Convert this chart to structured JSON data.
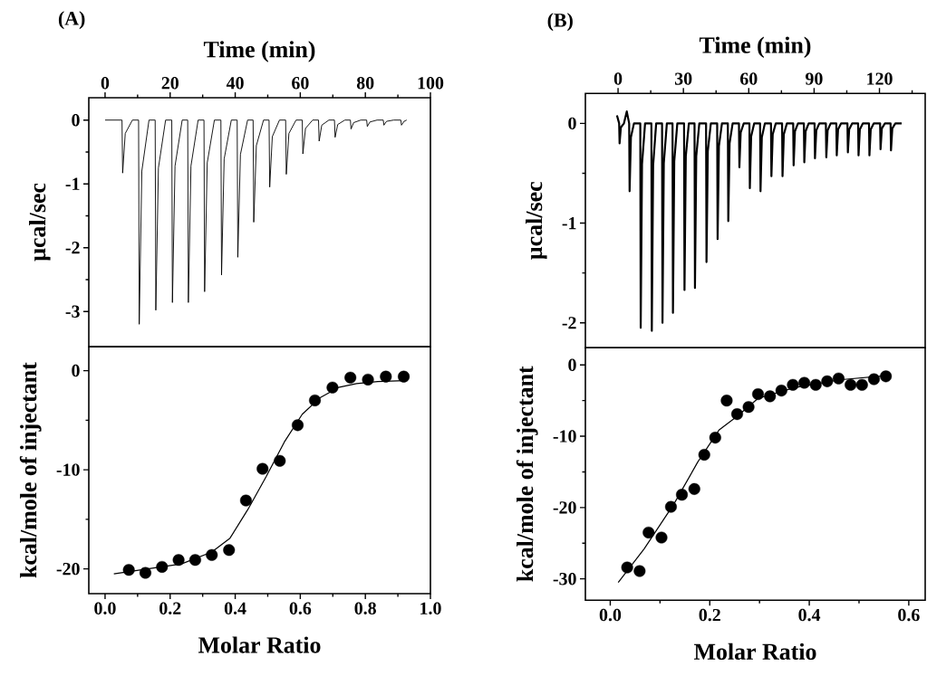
{
  "chart_data": [
    {
      "type": "line",
      "title": "(A)",
      "xlabel": "Time (min)",
      "ylabel": "µcal/sec",
      "color": "#000000",
      "x": [
        0,
        5.2,
        5.4,
        6.2,
        8.4,
        10.3,
        10.5,
        11.3,
        13.5,
        15.4,
        15.6,
        16.4,
        18.6,
        20.5,
        20.7,
        21.5,
        23.7,
        25.4,
        25.6,
        26.4,
        28.6,
        30.4,
        30.6,
        31.4,
        33.6,
        35.6,
        35.8,
        36.6,
        38.8,
        40.6,
        40.8,
        41.6,
        43.8,
        45.5,
        45.7,
        46.5,
        48.7,
        50.4,
        50.6,
        51.4,
        53.6,
        55.5,
        55.7,
        56.5,
        58.7,
        60.6,
        60.8,
        61.6,
        63.8,
        65.6,
        65.8,
        66.6,
        68.8,
        70.5,
        70.7,
        71.5,
        73.7,
        75.4,
        75.6,
        76.4,
        78.6,
        80.4,
        80.6,
        81.4,
        83.6,
        85.5,
        85.7,
        86.5,
        88.7,
        90.9,
        91.1,
        91.9,
        92.7
      ],
      "values": [
        0,
        0,
        -0.83,
        -0.21,
        0,
        0,
        -3.2,
        -0.8,
        0,
        0,
        -2.98,
        -0.75,
        0,
        0,
        -2.86,
        -0.72,
        0,
        0,
        -2.86,
        -0.72,
        0,
        0,
        -2.69,
        -0.67,
        0,
        0,
        -2.43,
        -0.61,
        0,
        0,
        -2.15,
        -0.54,
        0,
        0,
        -1.6,
        -0.4,
        0,
        0,
        -1.05,
        -0.26,
        0,
        0,
        -0.85,
        -0.21,
        0,
        0,
        -0.53,
        -0.13,
        0,
        0,
        -0.33,
        -0.08,
        0,
        0,
        -0.27,
        -0.07,
        0,
        0,
        -0.14,
        -0.04,
        0,
        0,
        -0.1,
        -0.03,
        0,
        0,
        -0.08,
        -0.02,
        0,
        0,
        -0.08,
        -0.02,
        0
      ],
      "xlim": [
        -5,
        100
      ],
      "ylim": [
        -3.55,
        0.35
      ],
      "xticks": [
        0,
        {
          "value": 10,
          "label": null
        },
        20,
        {
          "value": 30,
          "label": null
        },
        40,
        {
          "value": 50,
          "label": null
        },
        60,
        {
          "value": 70,
          "label": null
        },
        80,
        {
          "value": 90,
          "label": null
        },
        100
      ],
      "yticks": [
        -3,
        {
          "value": -2.5,
          "label": null
        },
        -2,
        {
          "value": -1.5,
          "label": null
        },
        -1,
        {
          "value": -0.5,
          "label": null
        },
        0
      ]
    },
    {
      "type": "scatter",
      "xlabel": "Molar Ratio",
      "ylabel": "kcal/mole of injectant",
      "series": [
        {
          "type": "scatter",
          "marker": "circle",
          "color": "#000000",
          "x": [
            0.073,
            0.124,
            0.175,
            0.226,
            0.277,
            0.328,
            0.381,
            0.433,
            0.484,
            0.537,
            0.592,
            0.645,
            0.699,
            0.754,
            0.808,
            0.863,
            0.918
          ],
          "values": [
            -20.1,
            -20.4,
            -19.8,
            -19.1,
            -19.1,
            -18.6,
            -18.1,
            -13.1,
            -9.9,
            -9.1,
            -5.5,
            -3.0,
            -1.7,
            -0.7,
            -0.9,
            -0.6,
            -0.6
          ]
        },
        {
          "type": "line",
          "color": "#000000",
          "x": [
            0.027,
            0.235,
            0.328,
            0.384,
            0.439,
            0.495,
            0.551,
            0.606,
            0.662,
            0.717,
            0.773,
            0.838,
            0.918
          ],
          "values": [
            -20.5,
            -19.5,
            -18.3,
            -16.9,
            -14.0,
            -10.7,
            -7.2,
            -4.4,
            -2.7,
            -1.7,
            -1.3,
            -1.1,
            -1.0
          ]
        }
      ],
      "xlim": [
        -0.05,
        1.0
      ],
      "ylim": [
        -22.5,
        2.4
      ],
      "xticks": [
        {
          "value": 0,
          "label": "0.0"
        },
        {
          "value": 0.1,
          "label": null
        },
        {
          "value": 0.2,
          "label": "0.2"
        },
        {
          "value": 0.3,
          "label": null
        },
        {
          "value": 0.4,
          "label": "0.4"
        },
        {
          "value": 0.5,
          "label": null
        },
        {
          "value": 0.6,
          "label": "0.6"
        },
        {
          "value": 0.7,
          "label": null
        },
        {
          "value": 0.8,
          "label": "0.8"
        },
        {
          "value": 0.9,
          "label": null
        },
        {
          "value": 1.0,
          "label": "1.0"
        }
      ],
      "yticks": [
        -20,
        {
          "value": -15,
          "label": null
        },
        -10,
        {
          "value": -5,
          "label": null
        },
        0
      ]
    },
    {
      "type": "line",
      "title": "(B)",
      "xlabel": "Time (min)",
      "ylabel": "µcal/sec",
      "color": "#000000",
      "x": [
        -0.5,
        0.5,
        0.7,
        1.3,
        2.7,
        4,
        5.1,
        5.3,
        5.9,
        7.3,
        10.2,
        10.4,
        11,
        12.4,
        15.3,
        15.5,
        16.1,
        17.5,
        20.2,
        20.4,
        21,
        22.4,
        25,
        25.2,
        25.8,
        27.2,
        30.3,
        30.5,
        31.1,
        32.5,
        35.1,
        35.3,
        35.9,
        37.3,
        40.4,
        40.6,
        41.2,
        42.6,
        45.5,
        45.7,
        46.3,
        47.7,
        50.4,
        50.6,
        51.2,
        52.6,
        55.5,
        55.7,
        56.3,
        57.7,
        60.3,
        60.5,
        61.1,
        62.5,
        65.2,
        65.4,
        66,
        67.4,
        70.2,
        70.4,
        71,
        72.4,
        75.3,
        75.5,
        76.1,
        77.5,
        80.4,
        80.6,
        81.2,
        82.6,
        85.3,
        85.5,
        86.1,
        87.5,
        90.2,
        90.4,
        91,
        92.4,
        95.4,
        95.6,
        96.2,
        97.6,
        100.2,
        100.4,
        101,
        102.4,
        105.3,
        105.5,
        106.1,
        107.5,
        110.2,
        110.4,
        111,
        112.4,
        115.2,
        115.4,
        116,
        117.4,
        120.3,
        120.5,
        121.1,
        122.5,
        125.1,
        125.3,
        125.9,
        127.3,
        130.2
      ],
      "values": [
        0.08,
        0,
        -0.2,
        -0.04,
        0,
        0.12,
        0,
        -0.68,
        -0.14,
        0,
        0,
        -2.05,
        -0.41,
        0,
        0,
        -2.08,
        -0.42,
        0,
        0,
        -2.0,
        -0.4,
        0,
        0,
        -1.9,
        -0.38,
        0,
        0,
        -1.67,
        -0.33,
        0,
        0,
        -1.65,
        -0.33,
        0,
        0,
        -1.39,
        -0.28,
        0,
        0,
        -1.16,
        -0.23,
        0,
        0,
        -0.98,
        -0.2,
        0,
        0,
        -0.44,
        -0.09,
        0,
        0,
        -0.65,
        -0.13,
        0,
        0,
        -0.68,
        -0.14,
        0,
        0,
        -0.53,
        -0.11,
        0,
        0,
        -0.53,
        -0.11,
        0,
        0,
        -0.42,
        -0.08,
        0,
        0,
        -0.39,
        -0.08,
        0,
        0,
        -0.35,
        -0.07,
        0,
        0,
        -0.34,
        -0.07,
        0,
        0,
        -0.32,
        -0.06,
        0,
        0,
        -0.29,
        -0.06,
        0,
        0,
        -0.32,
        -0.06,
        0,
        0,
        -0.32,
        -0.06,
        0,
        0,
        -0.26,
        -0.05,
        0,
        0,
        -0.27,
        -0.05,
        0,
        0
      ],
      "xlim": [
        -15,
        141
      ],
      "ylim": [
        -2.25,
        0.3
      ],
      "xticks": [
        0,
        {
          "value": 15,
          "label": null
        },
        30,
        {
          "value": 45,
          "label": null
        },
        60,
        {
          "value": 75,
          "label": null
        },
        90,
        {
          "value": 105,
          "label": null
        },
        120,
        {
          "value": 135,
          "label": null
        }
      ],
      "yticks": [
        -2,
        {
          "value": -1.5,
          "label": null
        },
        -1,
        {
          "value": -0.5,
          "label": null
        },
        0
      ]
    },
    {
      "type": "scatter",
      "xlabel": "Molar Ratio",
      "ylabel": "kcal/mole of injectant",
      "series": [
        {
          "type": "scatter",
          "marker": "circle",
          "color": "#000000",
          "x": [
            0.034,
            0.059,
            0.077,
            0.103,
            0.122,
            0.144,
            0.169,
            0.189,
            0.211,
            0.234,
            0.255,
            0.278,
            0.297,
            0.321,
            0.344,
            0.367,
            0.39,
            0.413,
            0.436,
            0.459,
            0.483,
            0.506,
            0.53,
            0.554
          ],
          "values": [
            -28.4,
            -28.9,
            -23.5,
            -24.2,
            -19.9,
            -18.2,
            -17.4,
            -12.6,
            -10.2,
            -5.0,
            -6.9,
            -5.9,
            -4.1,
            -4.4,
            -3.6,
            -2.8,
            -2.5,
            -2.8,
            -2.3,
            -1.9,
            -2.8,
            -2.8,
            -2.0,
            -1.6
          ]
        },
        {
          "type": "line",
          "color": "#000000",
          "x": [
            0.016,
            0.068,
            0.128,
            0.176,
            0.219,
            0.255,
            0.297,
            0.37,
            0.46,
            0.554
          ],
          "values": [
            -30.5,
            -25.8,
            -19.5,
            -13.6,
            -9.1,
            -7.2,
            -4.7,
            -3.2,
            -2.1,
            -1.5
          ]
        }
      ],
      "xlim": [
        -0.05,
        0.633
      ],
      "ylim": [
        -33,
        2.4
      ],
      "xticks": [
        {
          "value": 0,
          "label": "0.0"
        },
        {
          "value": 0.1,
          "label": null
        },
        {
          "value": 0.2,
          "label": "0.2"
        },
        {
          "value": 0.3,
          "label": null
        },
        {
          "value": 0.4,
          "label": "0.4"
        },
        {
          "value": 0.5,
          "label": null
        },
        {
          "value": 0.6,
          "label": "0.6"
        }
      ],
      "yticks": [
        -30,
        {
          "value": -25,
          "label": null
        },
        -20,
        {
          "value": -15,
          "label": null
        },
        -10,
        {
          "value": -5,
          "label": null
        },
        0
      ]
    }
  ]
}
